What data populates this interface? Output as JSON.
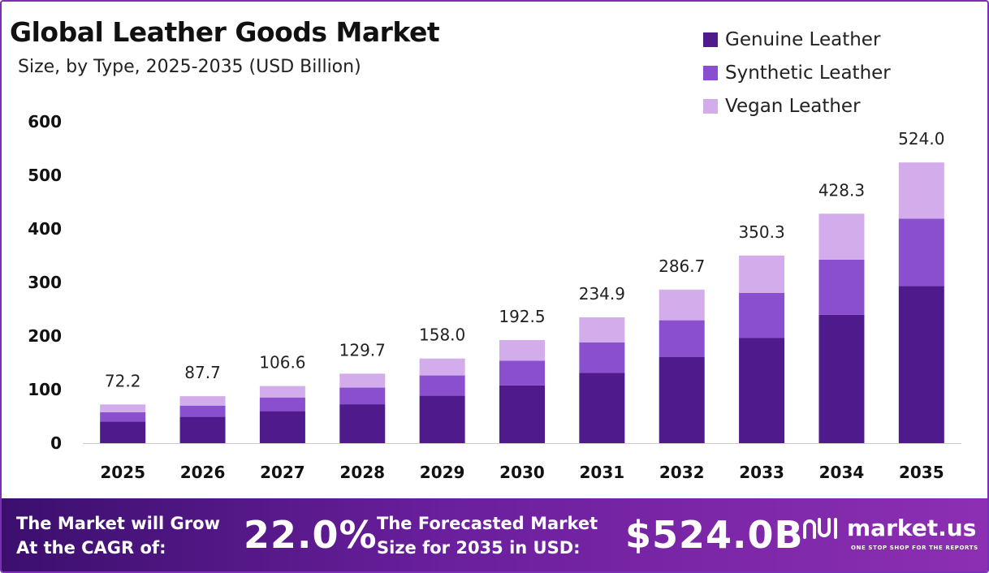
{
  "title": "Global Leather Goods Market",
  "subtitle": "Size, by Type, 2025-2035 (USD Billion)",
  "colors": {
    "genuine": "#4f1a8c",
    "synthetic": "#8a4fcf",
    "vegan": "#d2aceb",
    "frame": "#7a2fb5"
  },
  "chart_data": {
    "type": "bar",
    "stacked": true,
    "categories": [
      "2025",
      "2026",
      "2027",
      "2028",
      "2029",
      "2030",
      "2031",
      "2032",
      "2033",
      "2034",
      "2035"
    ],
    "series": [
      {
        "name": "Genuine Leather",
        "values": [
          40.4,
          49.1,
          59.7,
          72.6,
          88.5,
          107.8,
          131.5,
          160.6,
          196.2,
          239.8,
          293.4
        ]
      },
      {
        "name": "Synthetic Leather",
        "values": [
          17.3,
          21.0,
          25.6,
          31.1,
          37.9,
          46.2,
          56.4,
          68.8,
          84.1,
          102.8,
          125.8
        ]
      },
      {
        "name": "Vegan Leather",
        "values": [
          14.5,
          17.6,
          21.3,
          26.0,
          31.6,
          38.5,
          47.0,
          57.3,
          70.0,
          85.7,
          104.8
        ]
      }
    ],
    "totals": [
      "72.2",
      "87.7",
      "106.6",
      "129.7",
      "158.0",
      "192.5",
      "234.9",
      "286.7",
      "350.3",
      "428.3",
      "524.0"
    ],
    "y_ticks": [
      0,
      100,
      200,
      300,
      400,
      500,
      600
    ],
    "ylim": [
      0,
      600
    ],
    "grid": false,
    "legend_position": "top-right"
  },
  "banner": {
    "cagr_label_line1": "The Market will Grow",
    "cagr_label_line2": "At the CAGR of:",
    "cagr_value": "22.0%",
    "forecast_label_line1": "The Forecasted Market",
    "forecast_label_line2": "Size for 2035 in USD:",
    "forecast_value": "$524.0B",
    "brand_name": "market.us",
    "brand_tagline": "ONE STOP SHOP FOR THE REPORTS"
  }
}
